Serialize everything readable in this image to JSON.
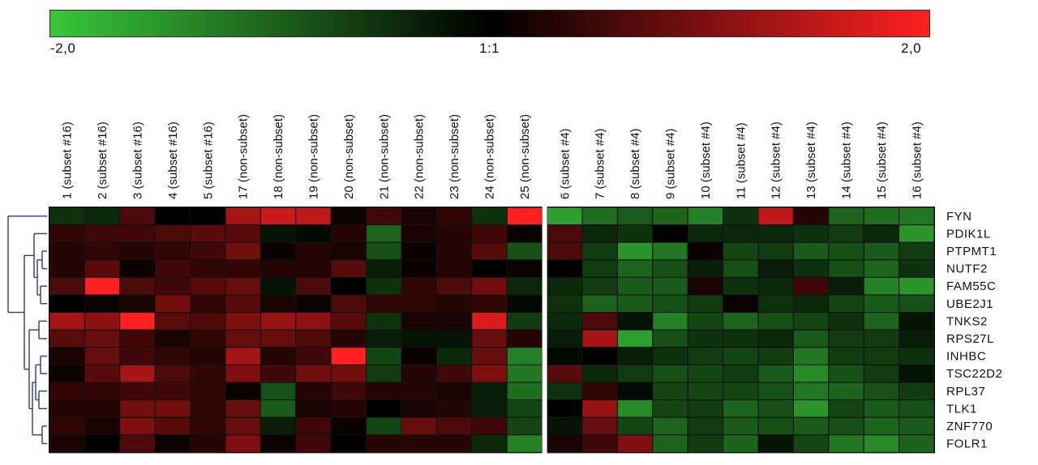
{
  "colors": {
    "low": "#39c739",
    "mid": "#000000",
    "high": "#ff2020",
    "dendrogram": "#2b3a8f",
    "separator": "#ffffff"
  },
  "color_scale": {
    "min_label": "-2,0",
    "mid_label": "1:1",
    "max_label": "2,0"
  },
  "chart_data": {
    "type": "heatmap",
    "title": "",
    "zlim": [
      -2.0,
      2.0
    ],
    "x": [
      "1 (subset #16)",
      "2 (subset #16)",
      "3 (subset #16)",
      "4 (subset #16)",
      "5 (subset #16)",
      "17 (non-subset)",
      "18 (non-subset)",
      "19 (non-subset)",
      "20 (non-subset)",
      "21 (non-subset)",
      "22 (non-subset)",
      "23 (non-subset)",
      "24 (non-subset)",
      "25 (non-subset)",
      "6 (subset #4)",
      "7 (subset #4)",
      "8 (subset #4)",
      "9 (subset #4)",
      "10 (subset #4)",
      "11 (subset #4)",
      "12 (subset #4)",
      "13 (subset #4)",
      "14 (subset #4)",
      "15 (subset #4)",
      "16 (subset #4)"
    ],
    "y": [
      "FYN",
      "PDIK1L",
      "PTPMT1",
      "NUTF2",
      "FAM55C",
      "UBE2J1",
      "TNKS2",
      "RPS27L",
      "INHBC",
      "TSC22D2",
      "RPL37",
      "TLK1",
      "ZNF770",
      "FOLR1"
    ],
    "separator_after_column": 14,
    "values": [
      [
        -0.5,
        -0.4,
        0.6,
        0.0,
        0.0,
        1.3,
        1.6,
        1.5,
        0.1,
        0.5,
        0.2,
        0.4,
        -0.5,
        2.0,
        -1.6,
        -1.1,
        -0.9,
        -1.0,
        -1.3,
        -0.5,
        1.5,
        0.3,
        -1.0,
        -1.1,
        -1.2
      ],
      [
        0.4,
        0.5,
        0.5,
        0.6,
        0.7,
        0.7,
        -0.2,
        -0.1,
        0.3,
        -1.0,
        0.2,
        0.3,
        0.5,
        0.1,
        0.6,
        -0.4,
        -0.5,
        0.0,
        -0.4,
        -0.4,
        -0.4,
        -0.5,
        -0.6,
        -0.4,
        -1.5
      ],
      [
        0.3,
        0.4,
        0.3,
        0.4,
        0.5,
        0.9,
        0.1,
        0.3,
        0.2,
        -0.8,
        0.1,
        0.3,
        0.7,
        -0.8,
        0.6,
        -0.6,
        -1.5,
        -1.2,
        0.1,
        -0.7,
        -0.6,
        -0.9,
        -0.8,
        -0.9,
        -0.6
      ],
      [
        0.3,
        0.7,
        0.1,
        0.5,
        0.4,
        0.4,
        0.3,
        0.3,
        0.7,
        -0.3,
        0.1,
        0.3,
        0.0,
        0.1,
        0.0,
        -0.6,
        -1.0,
        -0.8,
        -0.3,
        -0.8,
        -0.3,
        -0.5,
        -0.8,
        -1.0,
        -0.5
      ],
      [
        0.6,
        2.0,
        0.6,
        0.5,
        0.7,
        0.8,
        -0.2,
        0.6,
        0.0,
        -0.5,
        0.4,
        0.6,
        0.9,
        -0.4,
        -0.4,
        -0.6,
        -0.9,
        -0.9,
        0.2,
        -0.5,
        -0.4,
        0.5,
        -0.3,
        -1.3,
        -1.5
      ],
      [
        0.0,
        0.1,
        0.2,
        0.9,
        0.4,
        0.7,
        0.2,
        0.1,
        0.6,
        0.4,
        0.4,
        0.3,
        0.4,
        -0.1,
        -0.5,
        -1.0,
        -0.9,
        -0.8,
        -0.6,
        0.1,
        -0.5,
        -0.4,
        -0.7,
        -0.9,
        -0.8
      ],
      [
        1.3,
        1.1,
        2.0,
        0.7,
        0.6,
        1.0,
        1.2,
        1.1,
        0.7,
        -0.5,
        0.2,
        0.2,
        1.7,
        -0.6,
        -0.4,
        0.6,
        -0.2,
        -1.3,
        -0.7,
        -1.0,
        -0.8,
        -0.7,
        -0.5,
        -1.0,
        -0.2
      ],
      [
        0.7,
        0.8,
        0.5,
        0.2,
        0.4,
        0.8,
        0.8,
        0.6,
        0.3,
        -0.3,
        -0.2,
        -0.2,
        0.8,
        0.3,
        -0.3,
        1.3,
        -1.6,
        -0.8,
        -0.5,
        -0.5,
        -0.4,
        -0.9,
        -0.6,
        -0.6,
        -0.3
      ],
      [
        0.2,
        0.8,
        0.5,
        0.4,
        0.3,
        1.3,
        0.3,
        0.5,
        2.0,
        -0.7,
        0.1,
        -0.4,
        0.8,
        -1.3,
        -0.1,
        0.0,
        -0.3,
        -0.5,
        -0.6,
        -0.7,
        -0.6,
        -1.2,
        -0.6,
        -0.6,
        -0.5
      ],
      [
        0.1,
        0.7,
        1.3,
        0.6,
        0.4,
        1.0,
        0.5,
        0.9,
        0.9,
        -0.6,
        0.3,
        0.5,
        1.0,
        -1.2,
        0.7,
        -0.4,
        -0.6,
        -0.8,
        -0.7,
        -0.6,
        -0.9,
        -1.4,
        -0.8,
        -0.6,
        -0.2
      ],
      [
        0.4,
        0.4,
        0.5,
        0.5,
        0.4,
        0.1,
        -0.8,
        0.3,
        0.5,
        0.3,
        0.3,
        0.2,
        -0.3,
        -1.1,
        -0.5,
        0.4,
        -0.1,
        -0.7,
        -0.7,
        -0.7,
        -0.8,
        -1.2,
        -1.0,
        -0.8,
        -0.6
      ],
      [
        0.3,
        0.3,
        0.9,
        0.9,
        0.4,
        0.8,
        -0.9,
        0.2,
        0.3,
        0.0,
        0.2,
        0.3,
        -0.3,
        -0.7,
        0.0,
        1.2,
        -1.4,
        -0.7,
        -0.6,
        -1.0,
        -0.8,
        -1.5,
        -0.7,
        -0.9,
        -0.8
      ],
      [
        0.4,
        0.2,
        1.0,
        0.7,
        0.4,
        0.8,
        -0.3,
        0.5,
        0.1,
        -0.7,
        0.8,
        0.6,
        0.5,
        -0.7,
        -0.2,
        0.8,
        -0.7,
        -1.0,
        -0.6,
        -0.9,
        -0.8,
        -0.9,
        -0.8,
        -1.0,
        -0.9
      ],
      [
        0.2,
        0.0,
        0.6,
        0.1,
        0.3,
        1.0,
        0.1,
        0.5,
        0.0,
        0.3,
        0.3,
        0.3,
        -0.4,
        -1.3,
        0.2,
        0.5,
        1.0,
        -1.0,
        -0.6,
        -1.0,
        -0.2,
        -0.7,
        -1.2,
        -1.4,
        -1.0
      ]
    ]
  }
}
